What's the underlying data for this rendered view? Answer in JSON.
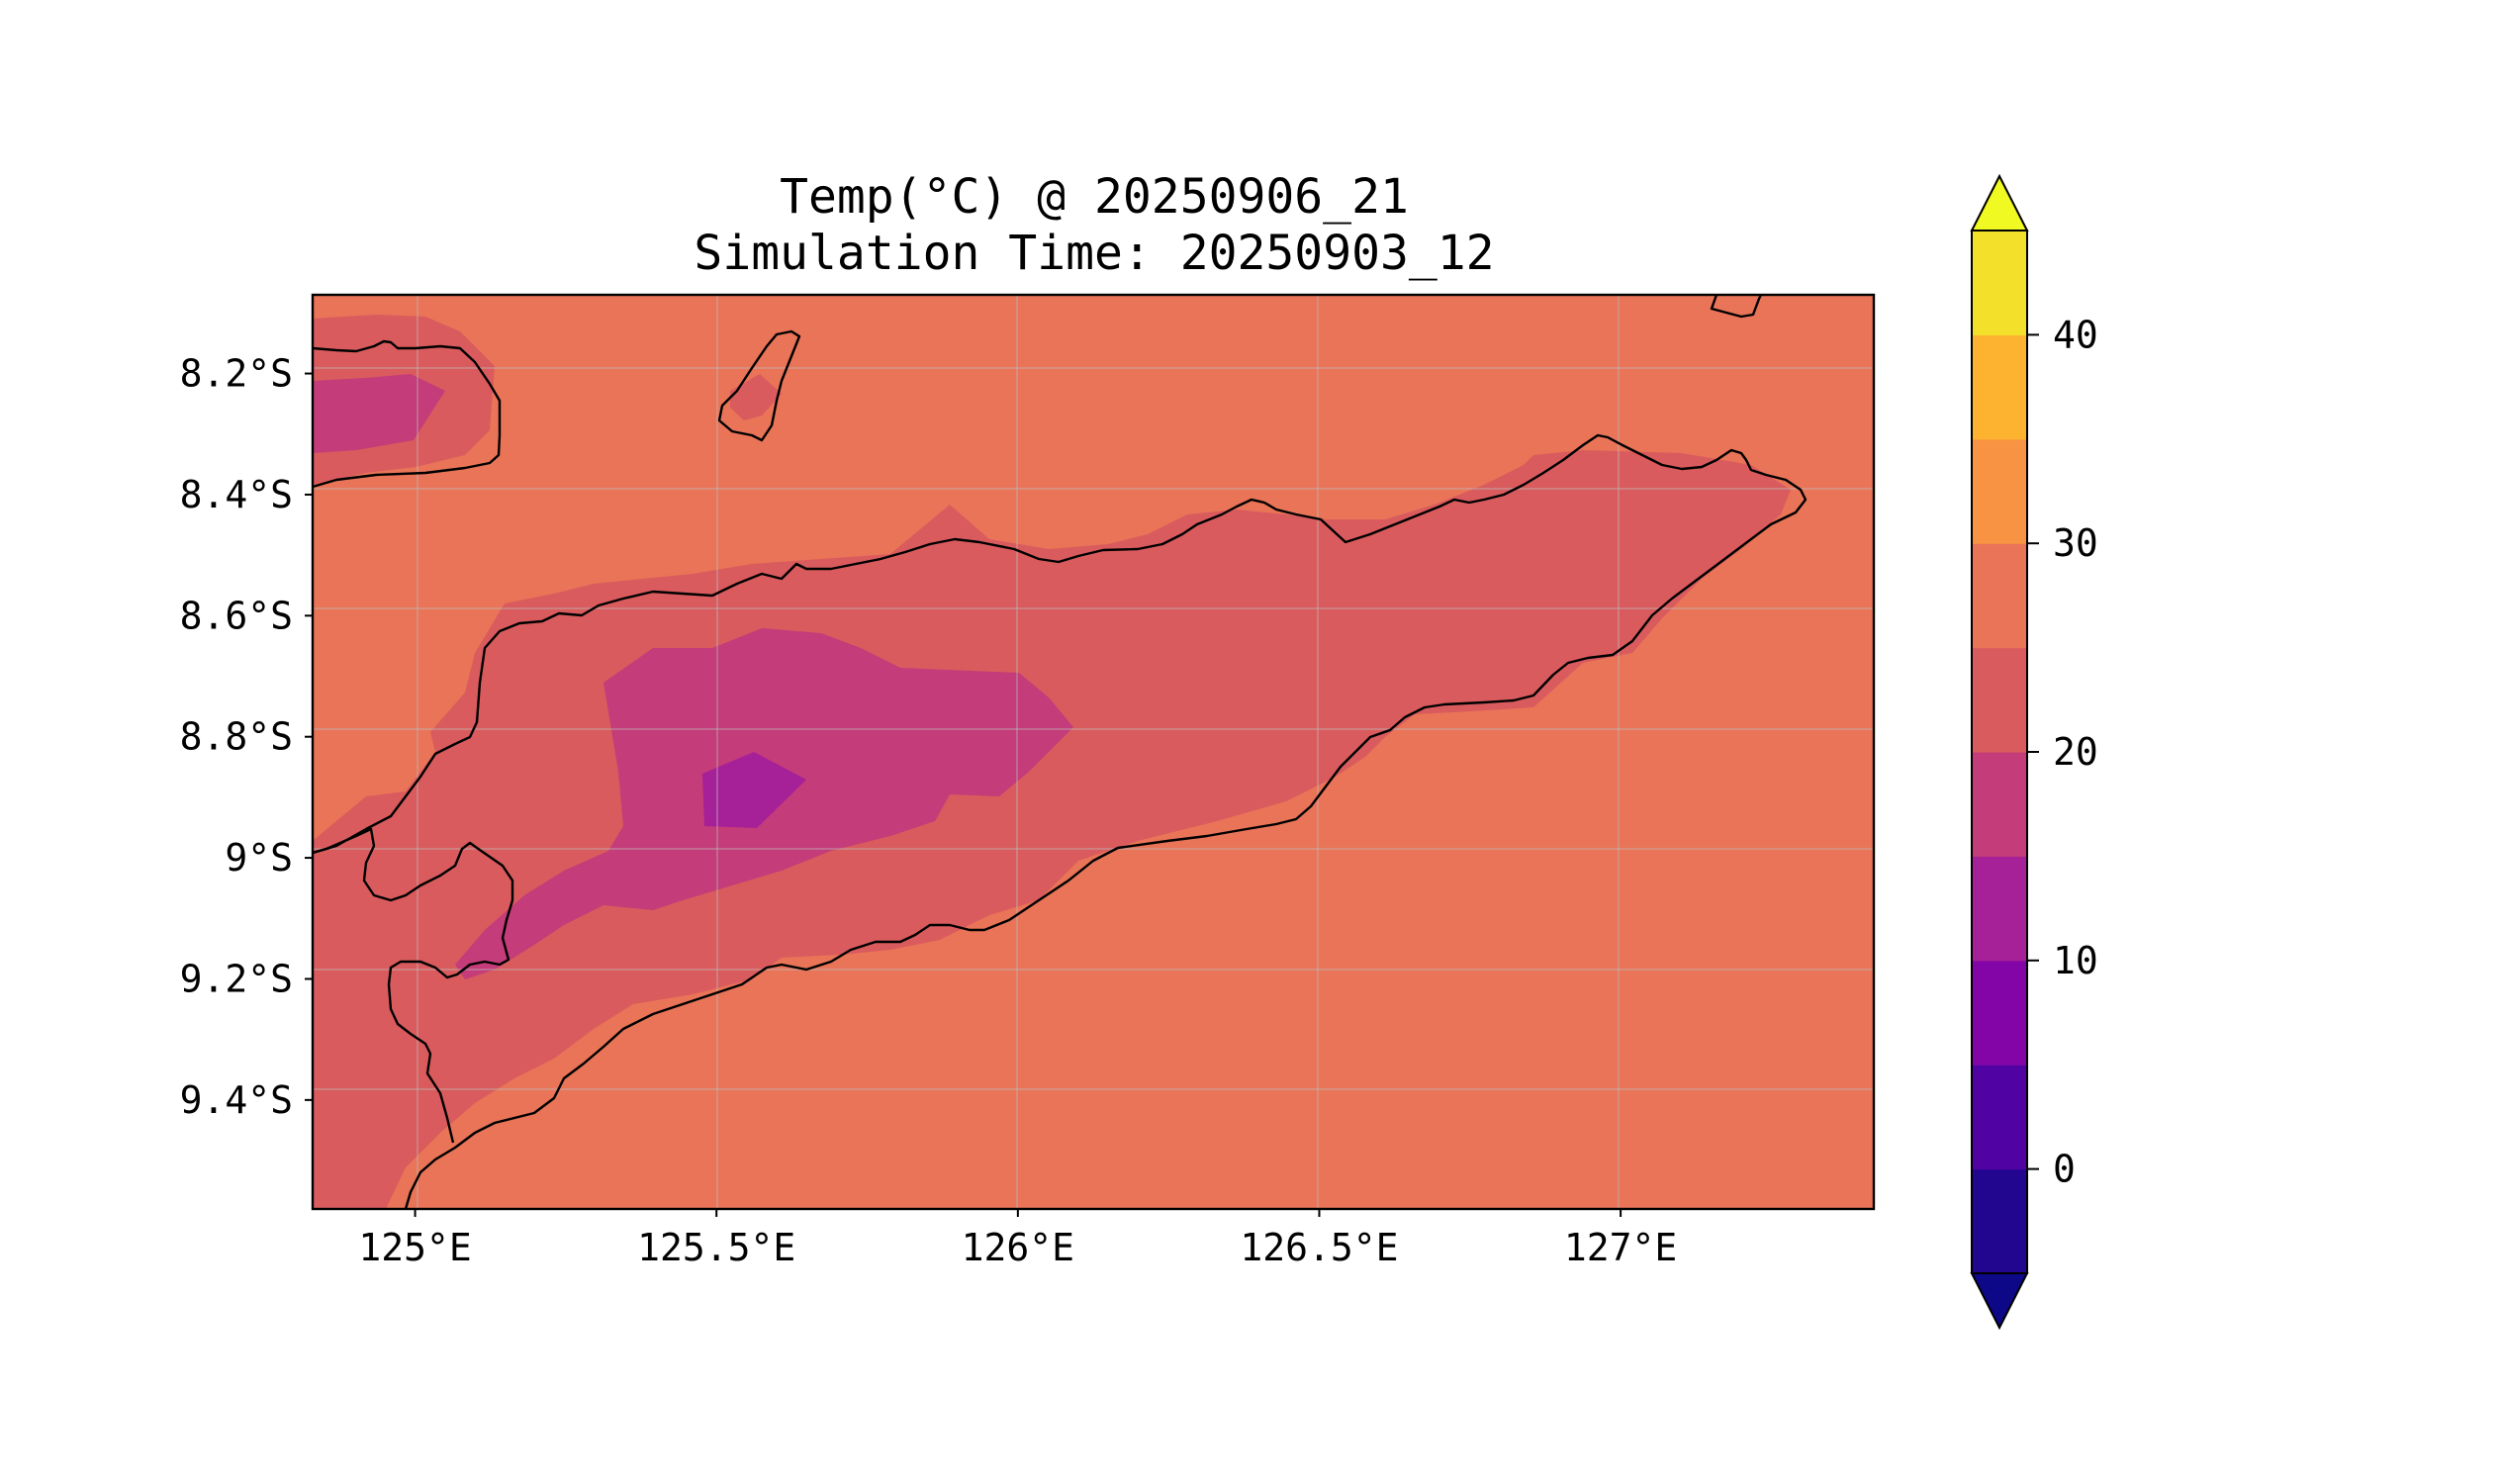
{
  "title": {
    "line1": "Temp(°C) @ 20250906_21",
    "line2": "Simulation Time: 20250903_12"
  },
  "map": {
    "lon_range": [
      124.83,
      127.42
    ],
    "lat_range": [
      -9.58,
      -8.07
    ],
    "x_ticks": [
      {
        "value": 125.0,
        "label": "125°E"
      },
      {
        "value": 125.5,
        "label": "125.5°E"
      },
      {
        "value": 126.0,
        "label": "126°E"
      },
      {
        "value": 126.5,
        "label": "126.5°E"
      },
      {
        "value": 127.0,
        "label": "127°E"
      }
    ],
    "y_ticks": [
      {
        "value": -8.2,
        "label": "8.2°S"
      },
      {
        "value": -8.4,
        "label": "8.4°S"
      },
      {
        "value": -8.6,
        "label": "8.6°S"
      },
      {
        "value": -8.8,
        "label": "8.8°S"
      },
      {
        "value": -9.0,
        "label": "9°S"
      },
      {
        "value": -9.2,
        "label": "9.2°S"
      },
      {
        "value": -9.4,
        "label": "9.4°S"
      }
    ],
    "gridlines": true,
    "background_level_color": "#e97458"
  },
  "colorbar": {
    "levels": [
      -5,
      0,
      5,
      10,
      15,
      20,
      25,
      30,
      35,
      40,
      45
    ],
    "colors": [
      "#220690",
      "#5002a2",
      "#8305a7",
      "#a62098",
      "#c43c79",
      "#da5b5d",
      "#e97458",
      "#f79342",
      "#fdb32f",
      "#f3e02a"
    ],
    "under_color": "#0d0887",
    "over_color": "#f0f921",
    "extend": "both",
    "ticks": [
      {
        "value": 0,
        "label": "0"
      },
      {
        "value": 10,
        "label": "10"
      },
      {
        "value": 20,
        "label": "20"
      },
      {
        "value": 30,
        "label": "30"
      },
      {
        "value": 40,
        "label": "40"
      }
    ]
  }
}
